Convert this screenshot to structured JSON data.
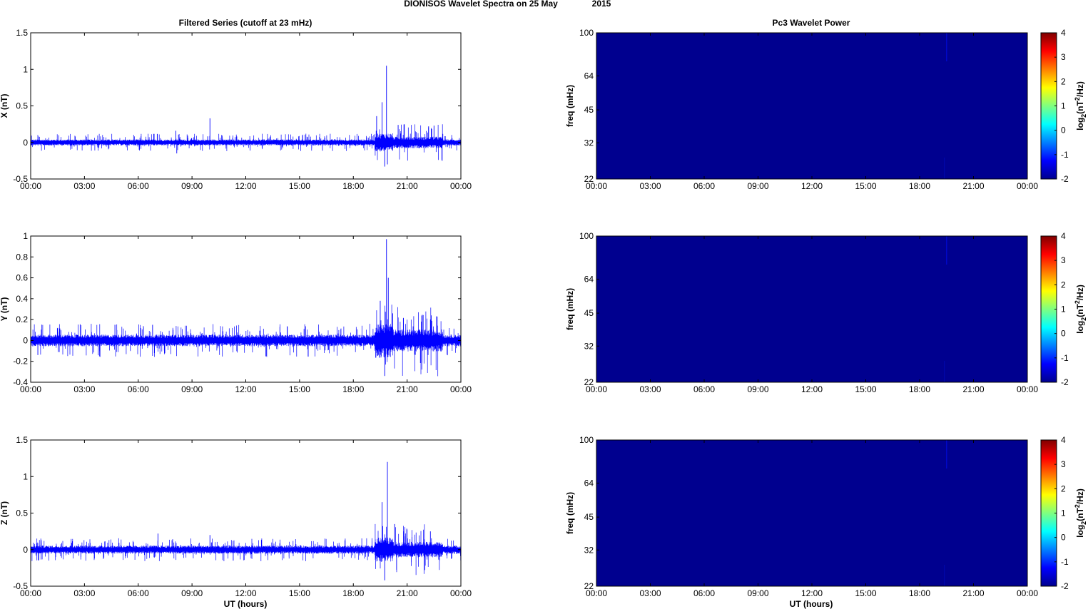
{
  "figure": {
    "title_main": "DIONISOS Wavelet Spectra on 25 May",
    "title_year": "2015",
    "left_title": "Filtered Series (cutoff at 23 mHz)",
    "right_title": "Pc3 Wavelet Power",
    "xlabel": "UT (hours)"
  },
  "colors": {
    "trace": "#0000ff",
    "spectrum_bg": "#00008f"
  },
  "chart_data": [
    {
      "type": "line",
      "component": "X",
      "ylabel": "X (nT)",
      "xlim": [
        0,
        24
      ],
      "ylim": [
        -0.5,
        1.5
      ],
      "xticks": [
        "00:00",
        "03:00",
        "06:00",
        "09:00",
        "12:00",
        "15:00",
        "18:00",
        "21:00",
        "00:00"
      ],
      "yticks": [
        "-0.5",
        "0",
        "0.5",
        "1",
        "1.5"
      ],
      "ytick_values": [
        -0.5,
        0,
        0.5,
        1,
        1.5
      ],
      "noise_envelope_nT": 0.03,
      "peaks": [
        {
          "t": 8.1,
          "v": 0.16
        },
        {
          "t": 8.15,
          "v": -0.15
        },
        {
          "t": 10.0,
          "v": 0.33
        },
        {
          "t": 19.3,
          "v": 0.36
        },
        {
          "t": 19.6,
          "v": 0.55
        },
        {
          "t": 19.75,
          "v": -0.33
        },
        {
          "t": 19.85,
          "v": 1.05
        },
        {
          "t": 19.9,
          "v": -0.3
        },
        {
          "t": 20.5,
          "v": 0.24
        },
        {
          "t": 22.2,
          "v": 0.22
        },
        {
          "t": 22.5,
          "v": 0.23
        }
      ]
    },
    {
      "type": "line",
      "component": "Y",
      "ylabel": "Y (nT)",
      "xlim": [
        0,
        24
      ],
      "ylim": [
        -0.4,
        1.0
      ],
      "xticks": [
        "00:00",
        "03:00",
        "06:00",
        "09:00",
        "12:00",
        "15:00",
        "18:00",
        "21:00",
        "00:00"
      ],
      "yticks": [
        "-0.4",
        "-0.2",
        "0",
        "0.2",
        "0.4",
        "0.6",
        "0.8",
        "1"
      ],
      "ytick_values": [
        -0.4,
        -0.2,
        0,
        0.2,
        0.4,
        0.6,
        0.8,
        1.0
      ],
      "noise_envelope_nT": 0.04,
      "peaks": [
        {
          "t": 0.4,
          "v": -0.14
        },
        {
          "t": 4.7,
          "v": 0.15
        },
        {
          "t": 6.8,
          "v": 0.15
        },
        {
          "t": 6.9,
          "v": -0.12
        },
        {
          "t": 19.5,
          "v": 0.38
        },
        {
          "t": 19.75,
          "v": -0.34
        },
        {
          "t": 19.85,
          "v": 0.97
        },
        {
          "t": 19.95,
          "v": 0.6
        },
        {
          "t": 20.2,
          "v": 0.26
        },
        {
          "t": 20.5,
          "v": 0.22
        },
        {
          "t": 22.3,
          "v": 0.2
        }
      ]
    },
    {
      "type": "line",
      "component": "Z",
      "ylabel": "Z (nT)",
      "xlim": [
        0,
        24
      ],
      "ylim": [
        -0.5,
        1.5
      ],
      "xticks": [
        "00:00",
        "03:00",
        "06:00",
        "09:00",
        "12:00",
        "15:00",
        "18:00",
        "21:00",
        "00:00"
      ],
      "yticks": [
        "-0.5",
        "0",
        "0.5",
        "1",
        "1.5"
      ],
      "ytick_values": [
        -0.5,
        0,
        0.5,
        1,
        1.5
      ],
      "noise_envelope_nT": 0.04,
      "peaks": [
        {
          "t": 7.1,
          "v": 0.22
        },
        {
          "t": 10.0,
          "v": 0.2
        },
        {
          "t": 11.3,
          "v": -0.15
        },
        {
          "t": 19.6,
          "v": 0.65
        },
        {
          "t": 19.75,
          "v": -0.42
        },
        {
          "t": 19.9,
          "v": 1.2
        },
        {
          "t": 20.3,
          "v": 0.35
        },
        {
          "t": 20.8,
          "v": 0.25
        },
        {
          "t": 22.3,
          "v": 0.25
        }
      ]
    },
    {
      "type": "heatmap",
      "ylabel": "freq (mHz)",
      "xlim": [
        0,
        24
      ],
      "ylim": [
        22,
        100
      ],
      "yscale": "log",
      "xticks": [
        "00:00",
        "03:00",
        "06:00",
        "09:00",
        "12:00",
        "15:00",
        "18:00",
        "21:00",
        "00:00"
      ],
      "yticks": [
        "22",
        "32",
        "45",
        "64",
        "100"
      ],
      "ytick_values": [
        22,
        32,
        45,
        64,
        100
      ],
      "colorbar": {
        "label": "log2(nT^2/Hz)",
        "range": [
          -2,
          4
        ],
        "ticks": [
          "-2",
          "-1",
          "0",
          "1",
          "2",
          "3",
          "4"
        ]
      },
      "background_level": -2,
      "faint_line_at_hour": 19.5
    },
    {
      "type": "heatmap",
      "ylabel": "freq (mHz)",
      "xlim": [
        0,
        24
      ],
      "ylim": [
        22,
        100
      ],
      "yscale": "log",
      "xticks": [
        "00:00",
        "03:00",
        "06:00",
        "09:00",
        "12:00",
        "15:00",
        "18:00",
        "21:00",
        "00:00"
      ],
      "yticks": [
        "22",
        "32",
        "45",
        "64",
        "100"
      ],
      "ytick_values": [
        22,
        32,
        45,
        64,
        100
      ],
      "colorbar": {
        "label": "log2(nT^2/Hz)",
        "range": [
          -2,
          4
        ],
        "ticks": [
          "-2",
          "-1",
          "0",
          "1",
          "2",
          "3",
          "4"
        ]
      },
      "background_level": -2,
      "faint_line_at_hour": 19.5
    },
    {
      "type": "heatmap",
      "ylabel": "freq (mHz)",
      "xlim": [
        0,
        24
      ],
      "ylim": [
        22,
        100
      ],
      "yscale": "log",
      "xticks": [
        "00:00",
        "03:00",
        "06:00",
        "09:00",
        "12:00",
        "15:00",
        "18:00",
        "21:00",
        "00:00"
      ],
      "yticks": [
        "22",
        "32",
        "45",
        "64",
        "100"
      ],
      "ytick_values": [
        22,
        32,
        45,
        64,
        100
      ],
      "colorbar": {
        "label": "log2(nT^2/Hz)",
        "range": [
          -2,
          4
        ],
        "ticks": [
          "-2",
          "-1",
          "0",
          "1",
          "2",
          "3",
          "4"
        ]
      },
      "background_level": -2,
      "faint_line_at_hour": 19.5
    }
  ]
}
